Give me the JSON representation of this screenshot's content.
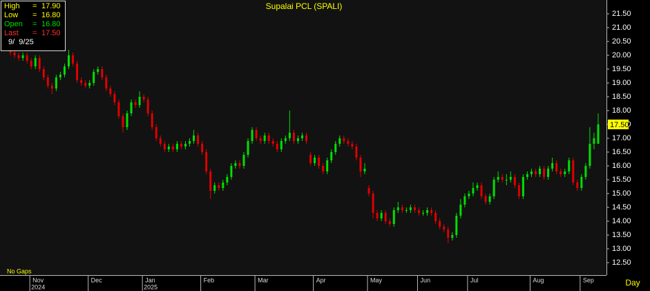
{
  "chart_data": {
    "type": "candlestick",
    "title": "Supalai PCL (SPALI)",
    "categories": [
      null,
      null,
      null,
      null,
      null,
      "Nov",
      null,
      null,
      null,
      null,
      null,
      null,
      null,
      null,
      null,
      null,
      null,
      null,
      null,
      "Dec",
      null,
      null,
      null,
      null,
      null,
      null,
      null,
      null,
      null,
      null,
      null,
      null,
      "Jan",
      null,
      null,
      null,
      null,
      null,
      null,
      null,
      null,
      null,
      null,
      null,
      null,
      null,
      "Feb",
      null,
      null,
      null,
      null,
      null,
      null,
      null,
      null,
      null,
      null,
      null,
      null,
      "Mar",
      null,
      null,
      null,
      null,
      null,
      null,
      null,
      null,
      null,
      null,
      null,
      null,
      null,
      "Apr",
      null,
      null,
      null,
      null,
      null,
      null,
      null,
      null,
      null,
      null,
      null,
      null,
      "May",
      null,
      null,
      null,
      null,
      null,
      null,
      null,
      null,
      null,
      null,
      null,
      "Jun",
      null,
      null,
      null,
      null,
      null,
      null,
      null,
      null,
      null,
      null,
      null,
      "Jul",
      null,
      null,
      null,
      null,
      null,
      null,
      null,
      null,
      null,
      null,
      null,
      null,
      null,
      null,
      "Aug",
      null,
      null,
      null,
      null,
      null,
      null,
      null,
      null,
      null,
      null,
      null,
      "Sep",
      null,
      null,
      null,
      null
    ],
    "year_labels": [
      {
        "text": "2024",
        "at": "Nov"
      },
      {
        "text": "2025",
        "at": "Jan"
      }
    ],
    "open": [
      20.2,
      20.1,
      20.0,
      19.9,
      20.0,
      19.8,
      19.6,
      19.9,
      19.5,
      19.2,
      18.9,
      18.8,
      19.2,
      19.3,
      19.6,
      20.0,
      19.7,
      19.1,
      19.0,
      18.9,
      19.0,
      19.4,
      19.5,
      19.2,
      18.8,
      18.6,
      18.3,
      17.8,
      17.4,
      17.9,
      18.3,
      18.2,
      18.5,
      18.4,
      17.9,
      17.4,
      17.0,
      16.8,
      16.6,
      16.7,
      16.6,
      16.8,
      16.7,
      16.8,
      16.9,
      17.1,
      16.8,
      16.5,
      15.8,
      15.1,
      15.3,
      15.2,
      15.4,
      15.6,
      16.0,
      16.1,
      16.0,
      16.4,
      16.9,
      17.3,
      17.0,
      16.9,
      17.1,
      16.9,
      16.8,
      16.6,
      16.9,
      17.0,
      17.2,
      16.9,
      17.0,
      17.1,
      16.4,
      16.1,
      16.3,
      16.0,
      15.8,
      16.2,
      16.5,
      16.8,
      17.0,
      16.9,
      16.8,
      16.7,
      16.3,
      15.8,
      15.2,
      15.0,
      14.3,
      14.1,
      14.3,
      14.0,
      13.9,
      14.4,
      14.5,
      14.4,
      14.4,
      14.5,
      14.4,
      14.3,
      14.3,
      14.4,
      14.3,
      14.0,
      13.8,
      13.7,
      13.4,
      13.5,
      14.2,
      14.6,
      14.9,
      15.0,
      15.2,
      15.3,
      14.9,
      14.7,
      14.9,
      15.5,
      15.6,
      15.5,
      15.5,
      15.6,
      15.3,
      14.9,
      15.6,
      15.7,
      15.8,
      15.7,
      15.9,
      15.6,
      15.9,
      16.1,
      15.8,
      15.7,
      15.8,
      16.2,
      15.4,
      15.2,
      15.6,
      16.0,
      16.8,
      16.8
    ],
    "high": [
      20.3,
      20.2,
      20.1,
      20.1,
      20.1,
      19.9,
      20.0,
      20.0,
      19.6,
      19.3,
      19.0,
      19.3,
      19.4,
      19.7,
      20.2,
      20.1,
      19.8,
      19.2,
      19.1,
      19.1,
      19.5,
      19.6,
      19.6,
      19.3,
      18.9,
      18.7,
      18.4,
      17.9,
      18.0,
      18.4,
      18.4,
      18.7,
      18.6,
      18.5,
      18.0,
      17.5,
      17.1,
      16.9,
      16.8,
      16.8,
      16.9,
      16.9,
      16.9,
      17.0,
      17.3,
      17.2,
      16.9,
      16.6,
      15.9,
      15.4,
      15.4,
      15.5,
      15.7,
      16.1,
      16.2,
      16.2,
      16.5,
      17.0,
      17.4,
      17.4,
      17.1,
      17.2,
      17.2,
      17.0,
      16.9,
      17.0,
      17.1,
      18.0,
      17.3,
      17.1,
      17.2,
      17.2,
      16.5,
      16.4,
      16.4,
      16.1,
      16.3,
      16.6,
      16.9,
      17.1,
      17.1,
      17.0,
      16.9,
      16.8,
      16.4,
      16.1,
      15.3,
      15.1,
      14.4,
      14.4,
      14.4,
      14.1,
      14.5,
      14.7,
      14.6,
      14.5,
      14.6,
      14.6,
      14.5,
      14.4,
      14.5,
      14.5,
      14.4,
      14.1,
      13.9,
      13.8,
      13.6,
      14.3,
      14.8,
      15.0,
      15.1,
      15.4,
      15.4,
      15.4,
      15.0,
      15.0,
      15.6,
      15.8,
      15.7,
      15.7,
      15.8,
      15.7,
      15.4,
      15.7,
      15.8,
      15.9,
      15.9,
      16.0,
      16.0,
      16.0,
      16.3,
      16.2,
      15.9,
      15.9,
      16.3,
      16.3,
      15.5,
      15.7,
      16.1,
      17.4,
      17.2,
      17.9
    ],
    "low": [
      20.0,
      19.9,
      19.8,
      19.8,
      19.7,
      19.5,
      19.5,
      19.4,
      19.1,
      18.8,
      18.6,
      18.7,
      19.1,
      19.2,
      19.5,
      19.6,
      19.0,
      18.9,
      18.8,
      18.8,
      18.9,
      19.3,
      19.1,
      18.7,
      18.5,
      18.2,
      17.7,
      17.2,
      17.3,
      17.8,
      18.1,
      18.1,
      18.3,
      17.8,
      17.3,
      16.9,
      16.7,
      16.5,
      16.5,
      16.5,
      16.5,
      16.6,
      16.6,
      16.7,
      16.8,
      16.7,
      16.4,
      15.7,
      14.8,
      15.0,
      15.1,
      15.1,
      15.3,
      15.5,
      15.9,
      15.9,
      15.9,
      16.3,
      16.8,
      16.9,
      16.8,
      16.8,
      16.8,
      16.7,
      16.5,
      16.5,
      16.8,
      16.9,
      16.8,
      16.8,
      16.9,
      16.8,
      16.0,
      16.0,
      15.9,
      15.7,
      15.7,
      16.1,
      16.4,
      16.7,
      16.8,
      16.7,
      16.6,
      16.2,
      15.6,
      15.7,
      14.9,
      14.1,
      14.0,
      14.0,
      13.9,
      13.8,
      13.8,
      14.3,
      14.3,
      14.3,
      14.3,
      14.3,
      14.2,
      14.2,
      14.2,
      14.2,
      13.9,
      13.7,
      13.6,
      13.2,
      13.3,
      13.4,
      14.1,
      14.5,
      14.8,
      14.9,
      15.1,
      14.8,
      14.6,
      14.6,
      14.8,
      15.4,
      15.4,
      15.3,
      15.4,
      15.2,
      14.8,
      14.8,
      15.5,
      15.6,
      15.6,
      15.6,
      15.5,
      15.5,
      15.8,
      15.7,
      15.6,
      15.6,
      15.7,
      15.3,
      15.1,
      15.1,
      15.5,
      15.9,
      16.6,
      16.8
    ],
    "close": [
      20.1,
      20.0,
      19.9,
      20.0,
      19.8,
      19.6,
      19.9,
      19.5,
      19.2,
      18.9,
      18.8,
      19.2,
      19.3,
      19.6,
      20.0,
      19.7,
      19.1,
      19.0,
      18.9,
      19.0,
      19.4,
      19.5,
      19.2,
      18.8,
      18.6,
      18.3,
      17.8,
      17.4,
      17.9,
      18.3,
      18.2,
      18.5,
      18.4,
      17.9,
      17.4,
      17.0,
      16.8,
      16.6,
      16.7,
      16.6,
      16.8,
      16.7,
      16.8,
      16.9,
      17.1,
      16.8,
      16.5,
      15.8,
      15.1,
      15.3,
      15.2,
      15.4,
      15.6,
      16.0,
      16.1,
      16.0,
      16.4,
      16.9,
      17.3,
      17.0,
      16.9,
      17.1,
      16.9,
      16.8,
      16.6,
      16.9,
      17.0,
      17.2,
      16.9,
      17.0,
      17.1,
      16.9,
      16.1,
      16.3,
      16.0,
      15.8,
      16.2,
      16.5,
      16.8,
      17.0,
      16.9,
      16.8,
      16.7,
      16.3,
      15.8,
      15.9,
      15.0,
      14.3,
      14.1,
      14.3,
      14.0,
      13.9,
      14.4,
      14.5,
      14.4,
      14.4,
      14.5,
      14.4,
      14.3,
      14.3,
      14.4,
      14.3,
      14.0,
      13.8,
      13.7,
      13.4,
      13.5,
      14.2,
      14.6,
      14.9,
      15.0,
      15.2,
      15.3,
      14.9,
      14.7,
      14.9,
      15.5,
      15.6,
      15.5,
      15.5,
      15.6,
      15.3,
      14.9,
      15.6,
      15.7,
      15.8,
      15.7,
      15.9,
      15.6,
      15.9,
      16.1,
      15.8,
      15.7,
      15.8,
      16.2,
      15.4,
      15.2,
      15.6,
      16.0,
      16.8,
      17.0,
      17.5
    ],
    "up_color": "#00e000",
    "down_color": "#e00000",
    "ylim": [
      12.05,
      22.0
    ],
    "yticks": [
      {
        "value": 12.5,
        "label": "12.50"
      },
      {
        "value": 13,
        "label": "13.00"
      },
      {
        "value": 13.5,
        "label": "13.50"
      },
      {
        "value": 14,
        "label": "14.00"
      },
      {
        "value": 14.5,
        "label": "14.50"
      },
      {
        "value": 15,
        "label": "15.00"
      },
      {
        "value": 15.5,
        "label": "15.50"
      },
      {
        "value": 16,
        "label": "16.00"
      },
      {
        "value": 16.5,
        "label": "16.50"
      },
      {
        "value": 17,
        "label": "17.00"
      },
      {
        "value": 17.5,
        "label": "17.50"
      },
      {
        "value": 18,
        "label": "18.00"
      },
      {
        "value": 18.5,
        "label": "18.50"
      },
      {
        "value": 19,
        "label": "19.00"
      },
      {
        "value": 19.5,
        "label": "19.50"
      },
      {
        "value": 20,
        "label": "20.00"
      },
      {
        "value": 20.5,
        "label": "20.50"
      },
      {
        "value": 21,
        "label": "21.00"
      },
      {
        "value": 21.5,
        "label": "21.50"
      }
    ],
    "last_marker": {
      "value": 17.5,
      "label": "17.50"
    },
    "info_box": {
      "rows": [
        {
          "label": "High",
          "sep": "=",
          "value": "17.90"
        },
        {
          "label": "Low",
          "sep": "=",
          "value": "16.80"
        },
        {
          "label": "Open",
          "sep": "=",
          "value": "16.80"
        },
        {
          "label": "Last",
          "sep": "=",
          "value": "17.50"
        }
      ],
      "date": "9/  9/25"
    },
    "gap_mode": "No  Gaps",
    "period": "Day"
  }
}
